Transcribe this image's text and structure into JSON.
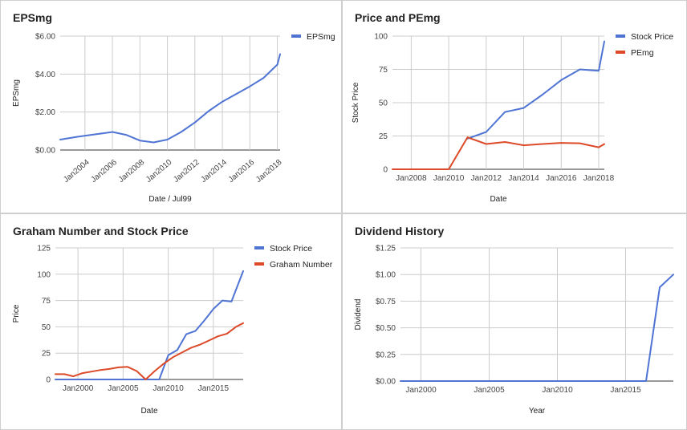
{
  "chart_data": [
    {
      "type": "line",
      "title": "EPSmg",
      "xlabel": "Date / Jul99",
      "ylabel": "EPSmg",
      "xlim": [
        2002.2,
        2018.2
      ],
      "ylim": [
        0,
        6
      ],
      "y_ticks": [
        0,
        2,
        4,
        6
      ],
      "y_tick_labels": [
        "$0.00",
        "$2.00",
        "$4.00",
        "$6.00"
      ],
      "x_ticks": [
        2004,
        2006,
        2008,
        2010,
        2012,
        2014,
        2016,
        2018
      ],
      "x_tick_labels": [
        "Jan2004",
        "Jan2006",
        "Jan2008",
        "Jan2010",
        "Jan2012",
        "Jan2014",
        "Jan2016",
        "Jan2018"
      ],
      "x_tick_rotation": -40,
      "grid": true,
      "legend": "top-right",
      "series": [
        {
          "name": "EPSmg",
          "color": "#4f74d3",
          "x": [
            2002.2,
            2003.5,
            2005,
            2006,
            2007,
            2008,
            2009,
            2010,
            2011,
            2012,
            2013,
            2014,
            2015,
            2016,
            2017,
            2018,
            2018.2
          ],
          "y": [
            0.55,
            0.7,
            0.85,
            0.95,
            0.8,
            0.5,
            0.4,
            0.55,
            0.95,
            1.45,
            2.05,
            2.55,
            2.95,
            3.35,
            3.8,
            4.5,
            5.05
          ]
        }
      ]
    },
    {
      "type": "line",
      "title": "Price and PEmg",
      "xlabel": "Date",
      "ylabel": "Stock Price",
      "xlim": [
        2007,
        2018.3
      ],
      "ylim": [
        0,
        100
      ],
      "y_ticks": [
        0,
        25,
        50,
        75,
        100
      ],
      "y_tick_labels": [
        "0",
        "25",
        "50",
        "75",
        "100"
      ],
      "x_ticks": [
        2008,
        2010,
        2012,
        2014,
        2016,
        2018
      ],
      "x_tick_labels": [
        "Jan2008",
        "Jan2010",
        "Jan2012",
        "Jan2014",
        "Jan2016",
        "Jan2018"
      ],
      "grid": true,
      "legend": "top-right",
      "series": [
        {
          "name": "Stock Price",
          "color": "#4f74d3",
          "x": [
            2011,
            2012,
            2013,
            2014,
            2015,
            2016,
            2017,
            2018,
            2018.3
          ],
          "y": [
            23,
            28,
            43,
            46,
            56,
            67,
            75,
            74,
            96
          ]
        },
        {
          "name": "PEmg",
          "color": "#dc4a29",
          "x": [
            2007,
            2008,
            2009,
            2010,
            2011,
            2012,
            2013,
            2014,
            2015,
            2016,
            2017,
            2018,
            2018.3
          ],
          "y": [
            0,
            0,
            0,
            0,
            24,
            19,
            20.5,
            18,
            19,
            19.8,
            19.5,
            16.5,
            19
          ]
        }
      ]
    },
    {
      "type": "line",
      "title": "Graham Number and Stock Price",
      "xlabel": "Date",
      "ylabel": "Price",
      "xlim": [
        1997.5,
        2018.3
      ],
      "ylim": [
        0,
        125
      ],
      "y_ticks": [
        0,
        25,
        50,
        75,
        100,
        125
      ],
      "y_tick_labels": [
        "0",
        "25",
        "50",
        "75",
        "100",
        "125"
      ],
      "x_ticks": [
        2000,
        2005,
        2010,
        2015
      ],
      "x_tick_labels": [
        "Jan2000",
        "Jan2005",
        "Jan2010",
        "Jan2015"
      ],
      "grid": true,
      "legend": "top-right",
      "series": [
        {
          "name": "Stock Price",
          "color": "#4f74d3",
          "x": [
            1997.5,
            2009,
            2010,
            2011,
            2012,
            2013,
            2014,
            2015,
            2016,
            2017,
            2018.3
          ],
          "y": [
            0,
            0,
            23,
            28,
            43,
            46,
            56,
            67,
            75,
            74,
            103
          ]
        },
        {
          "name": "Graham Number",
          "color": "#dc4a29",
          "x": [
            1997.5,
            1998.5,
            1999.5,
            2000.5,
            2001.5,
            2002.5,
            2003.5,
            2004.5,
            2005.5,
            2006.5,
            2007.5,
            2008.5,
            2009.5,
            2010.5,
            2011.5,
            2012.5,
            2013.5,
            2014.5,
            2015.5,
            2016.5,
            2017.5,
            2018.3
          ],
          "y": [
            5,
            5,
            3,
            6,
            7.5,
            9,
            10,
            11.5,
            12,
            8,
            0,
            8,
            15,
            21,
            25.5,
            30,
            33,
            37,
            41,
            43.5,
            50,
            53.5
          ]
        }
      ]
    },
    {
      "type": "line",
      "title": "Dividend History",
      "xlabel": "Year",
      "ylabel": "Dividend",
      "xlim": [
        1998.5,
        2018.5
      ],
      "ylim": [
        0,
        1.25
      ],
      "y_ticks": [
        0,
        0.25,
        0.5,
        0.75,
        1.0,
        1.25
      ],
      "y_tick_labels": [
        "$0.00",
        "$0.25",
        "$0.50",
        "$0.75",
        "$1.00",
        "$1.25"
      ],
      "x_ticks": [
        2000,
        2005,
        2010,
        2015
      ],
      "x_tick_labels": [
        "Jan2000",
        "Jan2005",
        "Jan2010",
        "Jan2015"
      ],
      "grid": true,
      "legend": "none",
      "series": [
        {
          "color": "#4f74d3",
          "x": [
            1998.5,
            2016.5,
            2017.5,
            2018.5
          ],
          "y": [
            0,
            0,
            0.88,
            1.0
          ]
        }
      ]
    }
  ]
}
